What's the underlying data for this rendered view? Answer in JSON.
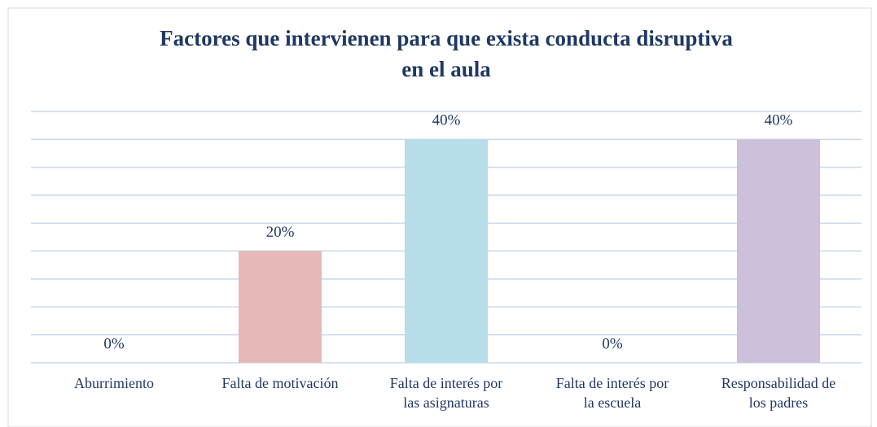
{
  "chart_data": {
    "type": "bar",
    "title": "Factores que intervienen para que exista conducta disruptiva en el aula",
    "categories": [
      "Aburrimiento",
      "Falta de motivación",
      "Falta de interés por las asignaturas",
      "Falta de interés por la escuela",
      "Responsabilidad de los padres"
    ],
    "values": [
      0,
      20,
      40,
      0,
      40
    ],
    "value_labels": [
      "0%",
      "20%",
      "40%",
      "0%",
      "40%"
    ],
    "colors": [
      "#c6d9f1",
      "#e6b8b7",
      "#b7dde8",
      "#d7e4bd",
      "#ccc0da"
    ],
    "ylim": [
      0,
      45
    ],
    "yticks": [
      0,
      5,
      10,
      15,
      20,
      25,
      30,
      35,
      40,
      45
    ],
    "grid": true
  }
}
